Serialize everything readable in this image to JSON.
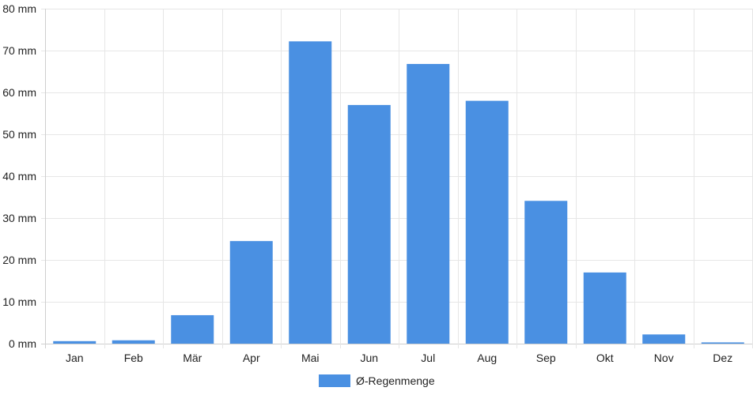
{
  "chart_data": {
    "type": "bar",
    "categories": [
      "Jan",
      "Feb",
      "Mär",
      "Apr",
      "Mai",
      "Jun",
      "Jul",
      "Aug",
      "Sep",
      "Okt",
      "Nov",
      "Dez"
    ],
    "series": [
      {
        "name": "Ø-Regenmenge",
        "values": [
          0.6,
          0.8,
          6.8,
          24.5,
          72.2,
          57.0,
          66.8,
          58.0,
          34.1,
          17.0,
          2.2,
          0.3
        ],
        "color": "#4a90e2"
      }
    ],
    "y_ticks": [
      "0 mm",
      "10 mm",
      "20 mm",
      "30 mm",
      "40 mm",
      "50 mm",
      "60 mm",
      "70 mm",
      "80 mm"
    ],
    "ylim": [
      0,
      80
    ],
    "grid": true,
    "legend_position": "bottom-center",
    "title": "",
    "xlabel": "",
    "ylabel": ""
  }
}
